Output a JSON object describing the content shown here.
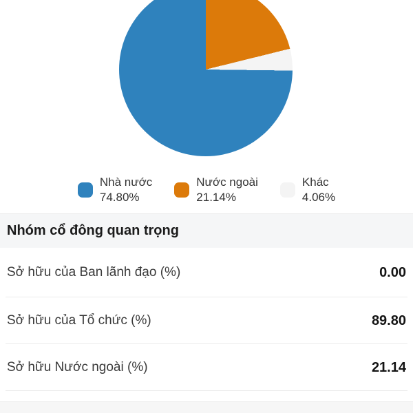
{
  "chart_data": {
    "type": "pie",
    "title": "",
    "legend_position": "bottom",
    "start_angle_deg": 90.72,
    "slices": [
      {
        "label": "Nhà nước",
        "value": 74.8,
        "display": "74.80%",
        "color": "#2f82bd"
      },
      {
        "label": "Nước ngoài",
        "value": 21.14,
        "display": "21.14%",
        "color": "#dc7a0a"
      },
      {
        "label": "Khác",
        "value": 4.06,
        "display": "4.06%",
        "color": "#f4f4f4"
      }
    ]
  },
  "section": {
    "title": "Nhóm cổ đông quan trọng"
  },
  "table": {
    "rows": [
      {
        "label": "Sở hữu của Ban lãnh đạo (%)",
        "value": "0.00"
      },
      {
        "label": "Sở hữu của Tổ chức (%)",
        "value": "89.80"
      },
      {
        "label": "Sở hữu Nước ngoài (%)",
        "value": "21.14"
      }
    ]
  },
  "colors": {
    "state_blue": "#2f82bd",
    "foreign_orange": "#dc7a0a",
    "other_gray": "#f4f4f4",
    "section_bg": "#f5f6f7"
  }
}
